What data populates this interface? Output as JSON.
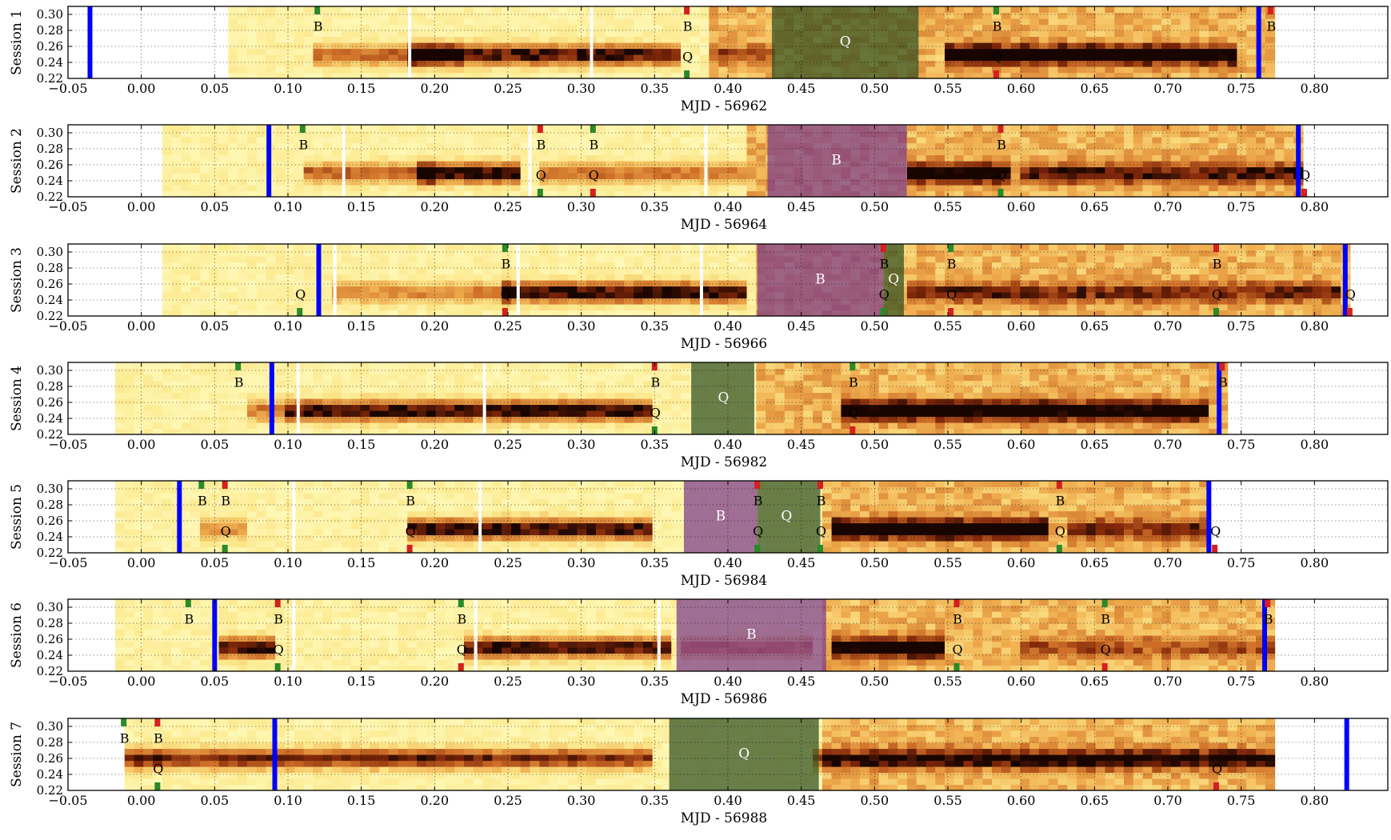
{
  "chart_data": {
    "type": "heatmap",
    "layout": "7 stacked panels sharing the same x tick set",
    "grid": true,
    "colormap": "afmhot_r (light yellow = low, dark red/black = high)",
    "shading": {
      "B": "#7a3a8a",
      "Q": "#2f4f20"
    },
    "marker_colors": {
      "bar": "#0000ff",
      "green_tick": "#2a8a2a",
      "red_tick": "#d42020"
    },
    "x_ticks": [
      "−0.05",
      "0.00",
      "0.05",
      "0.10",
      "0.15",
      "0.20",
      "0.25",
      "0.30",
      "0.35",
      "0.40",
      "0.45",
      "0.50",
      "0.55",
      "0.60",
      "0.65",
      "0.70",
      "0.75",
      "0.80"
    ],
    "y_ticks": [
      "0.22",
      "0.24",
      "0.26",
      "0.28",
      "0.30"
    ],
    "xlim": [
      -0.05,
      0.85
    ],
    "ylim": [
      0.22,
      0.31
    ],
    "panels": [
      {
        "ylabel": "Session 1",
        "xlabel": "MJD - 56962",
        "data_range": [
          0.06,
          0.77
        ],
        "active": [
          [
            0.06,
            0.39
          ],
          [
            0.39,
            0.77
          ]
        ],
        "band": {
          "y": 0.25,
          "segments": [
            [
              0.12,
              0.22,
              0.55
            ],
            [
              0.18,
              0.37,
              0.9
            ],
            [
              0.39,
              0.43,
              0.35
            ],
            [
              0.55,
              0.75,
              0.95
            ]
          ]
        },
        "white_cuts": [
          0.183,
          0.307
        ],
        "shade": [
          {
            "x0": 0.43,
            "x1": 0.53,
            "type": "Q"
          }
        ],
        "bars": [
          -0.035,
          0.762
        ],
        "marks": [
          {
            "x": 0.12,
            "label": "B",
            "top": "green",
            "bottom": "none"
          },
          {
            "x": 0.372,
            "label": "B",
            "top": "red",
            "bottom": "none"
          },
          {
            "x": 0.372,
            "label": "Q",
            "top": "none",
            "bottom": "green"
          },
          {
            "x": 0.583,
            "label": "B",
            "top": "green",
            "bottom": "none"
          },
          {
            "x": 0.583,
            "label": "Q",
            "top": "none",
            "bottom": "red"
          },
          {
            "x": 0.77,
            "label": "B",
            "top": "red",
            "bottom": "none"
          }
        ],
        "shade_labels": [
          {
            "x": 0.48,
            "label": "Q"
          }
        ]
      },
      {
        "ylabel": "Session 2",
        "xlabel": "MJD - 56964",
        "data_range": [
          0.015,
          0.795
        ],
        "active": [
          [
            0.015,
            0.415
          ],
          [
            0.415,
            0.795
          ]
        ],
        "band": {
          "y": 0.25,
          "segments": [
            [
              0.11,
              0.2,
              0.55
            ],
            [
              0.19,
              0.26,
              0.95
            ],
            [
              0.27,
              0.41,
              0.5
            ],
            [
              0.52,
              0.59,
              0.9
            ],
            [
              0.6,
              0.79,
              0.6
            ]
          ]
        },
        "white_cuts": [
          0.138,
          0.265,
          0.385
        ],
        "shade": [
          {
            "x0": 0.427,
            "x1": 0.522,
            "type": "B"
          }
        ],
        "bars": [
          0.087,
          0.789
        ],
        "marks": [
          {
            "x": 0.11,
            "label": "B",
            "top": "green",
            "bottom": "none"
          },
          {
            "x": 0.272,
            "label": "B",
            "top": "red",
            "bottom": "none"
          },
          {
            "x": 0.272,
            "label": "Q",
            "top": "none",
            "bottom": "green"
          },
          {
            "x": 0.308,
            "label": "B",
            "top": "green",
            "bottom": "none"
          },
          {
            "x": 0.308,
            "label": "Q",
            "top": "none",
            "bottom": "red"
          },
          {
            "x": 0.586,
            "label": "B",
            "top": "red",
            "bottom": "none"
          },
          {
            "x": 0.586,
            "label": "Q",
            "top": "none",
            "bottom": "green"
          },
          {
            "x": 0.793,
            "label": "Q",
            "top": "none",
            "bottom": "red"
          }
        ],
        "shade_labels": [
          {
            "x": 0.474,
            "label": "B"
          }
        ]
      },
      {
        "ylabel": "Session 3",
        "xlabel": "MJD - 56966",
        "data_range": [
          0.012,
          0.825
        ],
        "active": [
          [
            0.012,
            0.42
          ],
          [
            0.42,
            0.825
          ]
        ],
        "band": {
          "y": 0.25,
          "segments": [
            [
              0.13,
              0.25,
              0.45
            ],
            [
              0.245,
              0.41,
              0.95
            ],
            [
              0.52,
              0.82,
              0.5
            ]
          ]
        },
        "white_cuts": [
          0.132,
          0.257,
          0.382
        ],
        "shade": [
          {
            "x0": 0.42,
            "x1": 0.506,
            "type": "B"
          },
          {
            "x0": 0.506,
            "x1": 0.52,
            "type": "Q"
          }
        ],
        "bars": [
          0.121,
          0.821
        ],
        "marks": [
          {
            "x": 0.108,
            "label": "Q",
            "top": "none",
            "bottom": "green"
          },
          {
            "x": 0.248,
            "label": "B",
            "top": "green",
            "bottom": "none"
          },
          {
            "x": 0.248,
            "label": "Q",
            "top": "none",
            "bottom": "red"
          },
          {
            "x": 0.506,
            "label": "B",
            "top": "red",
            "bottom": "none"
          },
          {
            "x": 0.506,
            "label": "Q",
            "top": "none",
            "bottom": "green"
          },
          {
            "x": 0.552,
            "label": "B",
            "top": "green",
            "bottom": "none"
          },
          {
            "x": 0.552,
            "label": "Q",
            "top": "none",
            "bottom": "red"
          },
          {
            "x": 0.733,
            "label": "B",
            "top": "red",
            "bottom": "none"
          },
          {
            "x": 0.733,
            "label": "Q",
            "top": "none",
            "bottom": "green"
          },
          {
            "x": 0.824,
            "label": "Q",
            "top": "none",
            "bottom": "red"
          }
        ],
        "shade_labels": [
          {
            "x": 0.463,
            "label": "B"
          },
          {
            "x": 0.513,
            "label": "Q"
          }
        ]
      },
      {
        "ylabel": "Session 4",
        "xlabel": "MJD - 56982",
        "data_range": [
          -0.015,
          0.738
        ],
        "active": [
          [
            -0.015,
            0.375
          ],
          [
            0.42,
            0.738
          ]
        ],
        "band": {
          "y": 0.25,
          "segments": [
            [
              0.07,
              0.1,
              0.5
            ],
            [
              0.1,
              0.35,
              0.92
            ],
            [
              0.48,
              0.73,
              0.9
            ]
          ]
        },
        "white_cuts": [
          0.107,
          0.234
        ],
        "shade": [
          {
            "x0": 0.375,
            "x1": 0.418,
            "type": "Q"
          }
        ],
        "bars": [
          0.089,
          0.735
        ],
        "marks": [
          {
            "x": 0.066,
            "label": "B",
            "top": "green",
            "bottom": "none"
          },
          {
            "x": 0.35,
            "label": "B",
            "top": "red",
            "bottom": "none"
          },
          {
            "x": 0.35,
            "label": "Q",
            "top": "none",
            "bottom": "green"
          },
          {
            "x": 0.485,
            "label": "B",
            "top": "green",
            "bottom": "none"
          },
          {
            "x": 0.485,
            "label": "Q",
            "top": "none",
            "bottom": "red"
          },
          {
            "x": 0.737,
            "label": "B",
            "top": "red",
            "bottom": "none"
          }
        ],
        "shade_labels": [
          {
            "x": 0.397,
            "label": "Q"
          }
        ]
      },
      {
        "ylabel": "Session 5",
        "xlabel": "MJD - 56984",
        "data_range": [
          -0.015,
          0.73
        ],
        "active": [
          [
            -0.015,
            0.37
          ],
          [
            0.465,
            0.73
          ]
        ],
        "band": {
          "y": 0.25,
          "segments": [
            [
              0.04,
              0.07,
              0.4
            ],
            [
              0.18,
              0.35,
              0.92
            ],
            [
              0.47,
              0.62,
              0.95
            ],
            [
              0.63,
              0.73,
              0.5
            ]
          ]
        },
        "white_cuts": [
          0.104,
          0.231
        ],
        "shade": [
          {
            "x0": 0.37,
            "x1": 0.42,
            "type": "B"
          },
          {
            "x0": 0.42,
            "x1": 0.463,
            "type": "Q"
          }
        ],
        "bars": [
          0.026,
          0.728
        ],
        "marks": [
          {
            "x": 0.041,
            "label": "B",
            "top": "green",
            "bottom": "none"
          },
          {
            "x": 0.057,
            "label": "B",
            "top": "red",
            "bottom": "none"
          },
          {
            "x": 0.057,
            "label": "Q",
            "top": "none",
            "bottom": "green"
          },
          {
            "x": 0.183,
            "label": "B",
            "top": "green",
            "bottom": "none"
          },
          {
            "x": 0.183,
            "label": "Q",
            "top": "none",
            "bottom": "red"
          },
          {
            "x": 0.42,
            "label": "B",
            "top": "red",
            "bottom": "none"
          },
          {
            "x": 0.42,
            "label": "Q",
            "top": "none",
            "bottom": "green"
          },
          {
            "x": 0.463,
            "label": "B",
            "top": "red",
            "bottom": "none"
          },
          {
            "x": 0.463,
            "label": "Q",
            "top": "none",
            "bottom": "green"
          },
          {
            "x": 0.626,
            "label": "B",
            "top": "red",
            "bottom": "none"
          },
          {
            "x": 0.626,
            "label": "Q",
            "top": "none",
            "bottom": "green"
          },
          {
            "x": 0.732,
            "label": "Q",
            "top": "none",
            "bottom": "red"
          }
        ],
        "shade_labels": [
          {
            "x": 0.395,
            "label": "B"
          },
          {
            "x": 0.44,
            "label": "Q"
          }
        ]
      },
      {
        "ylabel": "Session 6",
        "xlabel": "MJD - 56986",
        "data_range": [
          -0.018,
          0.77
        ],
        "active": [
          [
            -0.018,
            0.365
          ],
          [
            0.465,
            0.77
          ]
        ],
        "band": {
          "y": 0.25,
          "segments": [
            [
              0.05,
              0.09,
              0.9
            ],
            [
              0.22,
              0.36,
              0.9
            ],
            [
              0.37,
              0.46,
              0.55
            ],
            [
              0.47,
              0.55,
              0.92
            ],
            [
              0.6,
              0.77,
              0.35
            ]
          ]
        },
        "white_cuts": [
          0.104,
          0.228,
          0.353
        ],
        "shade": [
          {
            "x0": 0.365,
            "x1": 0.467,
            "type": "B"
          }
        ],
        "bars": [
          0.05,
          0.766
        ],
        "marks": [
          {
            "x": 0.032,
            "label": "B",
            "top": "green",
            "bottom": "none"
          },
          {
            "x": 0.093,
            "label": "B",
            "top": "red",
            "bottom": "none"
          },
          {
            "x": 0.093,
            "label": "Q",
            "top": "none",
            "bottom": "green"
          },
          {
            "x": 0.218,
            "label": "B",
            "top": "green",
            "bottom": "none"
          },
          {
            "x": 0.218,
            "label": "Q",
            "top": "none",
            "bottom": "red"
          },
          {
            "x": 0.556,
            "label": "B",
            "top": "red",
            "bottom": "none"
          },
          {
            "x": 0.556,
            "label": "Q",
            "top": "none",
            "bottom": "green"
          },
          {
            "x": 0.657,
            "label": "B",
            "top": "green",
            "bottom": "none"
          },
          {
            "x": 0.657,
            "label": "Q",
            "top": "none",
            "bottom": "red"
          },
          {
            "x": 0.768,
            "label": "B",
            "top": "red",
            "bottom": "none"
          }
        ],
        "shade_labels": [
          {
            "x": 0.416,
            "label": "B"
          }
        ]
      },
      {
        "ylabel": "Session 7",
        "xlabel": "MJD - 56988",
        "data_range": [
          -0.012,
          0.77
        ],
        "active": [
          [
            -0.012,
            0.36
          ],
          [
            0.462,
            0.77
          ]
        ],
        "band": {
          "y": 0.26,
          "segments": [
            [
              -0.01,
              0.02,
              0.8
            ],
            [
              0.02,
              0.35,
              0.75
            ],
            [
              0.46,
              0.77,
              0.7
            ]
          ]
        },
        "white_cuts": [],
        "shade": [
          {
            "x0": 0.36,
            "x1": 0.462,
            "type": "Q"
          }
        ],
        "bars": [
          0.091,
          0.822
        ],
        "marks": [
          {
            "x": -0.012,
            "label": "B",
            "top": "green",
            "bottom": "none"
          },
          {
            "x": 0.011,
            "label": "B",
            "top": "red",
            "bottom": "none"
          },
          {
            "x": 0.011,
            "label": "Q",
            "top": "none",
            "bottom": "green"
          },
          {
            "x": 0.733,
            "label": "Q",
            "top": "none",
            "bottom": "red"
          }
        ],
        "shade_labels": [
          {
            "x": 0.411,
            "label": "Q"
          }
        ]
      }
    ]
  }
}
